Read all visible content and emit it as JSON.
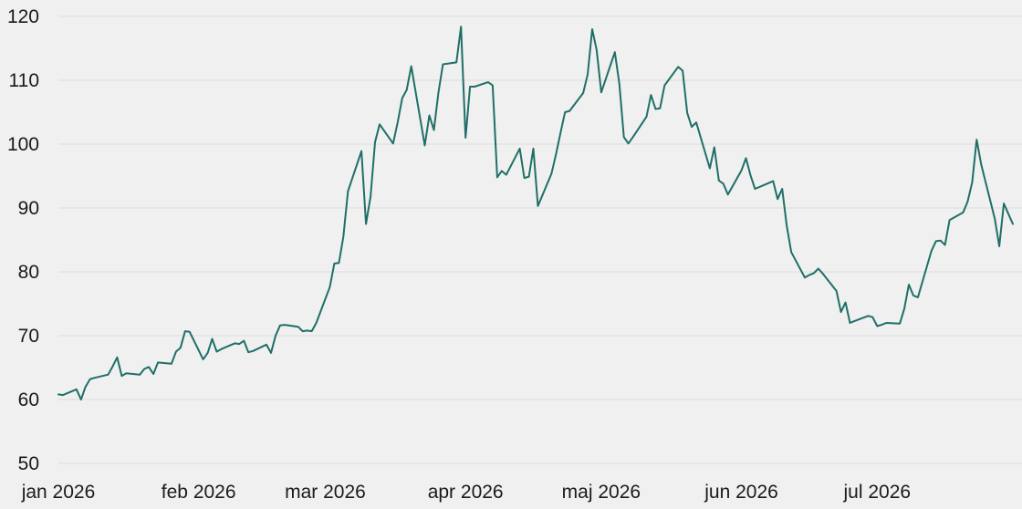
{
  "chart_data": {
    "type": "line",
    "title": "",
    "xlabel": "",
    "ylabel": "",
    "ylim": [
      50,
      120
    ],
    "yticks": [
      50,
      60,
      70,
      80,
      90,
      100,
      110,
      120
    ],
    "xlim": [
      "2026-01-01",
      "2026-07-31"
    ],
    "xticks": [
      {
        "date": "2026-01-01",
        "label": "jan 2026"
      },
      {
        "date": "2026-02-01",
        "label": "feb 2026"
      },
      {
        "date": "2026-03-01",
        "label": "mar 2026"
      },
      {
        "date": "2026-04-01",
        "label": "apr 2026"
      },
      {
        "date": "2026-05-01",
        "label": "maj 2026"
      },
      {
        "date": "2026-06-01",
        "label": "jun 2026"
      },
      {
        "date": "2026-07-01",
        "label": "jul 2026"
      }
    ],
    "grid": true,
    "legend": "none",
    "colors": {
      "line": "#1f6f68",
      "grid": "#dcdcdc",
      "background": "#f0f0f0"
    },
    "series": [
      {
        "x": [
          "2026-01-01",
          "2026-01-02",
          "2026-01-05",
          "2026-01-06",
          "2026-01-07",
          "2026-01-08",
          "2026-01-09",
          "2026-01-12",
          "2026-01-13",
          "2026-01-14",
          "2026-01-15",
          "2026-01-16",
          "2026-01-19",
          "2026-01-20",
          "2026-01-21",
          "2026-01-22",
          "2026-01-23",
          "2026-01-26",
          "2026-01-27",
          "2026-01-28",
          "2026-01-29",
          "2026-01-30",
          "2026-02-02",
          "2026-02-03",
          "2026-02-04",
          "2026-02-05",
          "2026-02-06",
          "2026-02-09",
          "2026-02-10",
          "2026-02-11",
          "2026-02-12",
          "2026-02-13",
          "2026-02-16",
          "2026-02-17",
          "2026-02-18",
          "2026-02-19",
          "2026-02-20",
          "2026-02-23",
          "2026-02-24",
          "2026-02-25",
          "2026-02-26",
          "2026-02-27",
          "2026-03-02",
          "2026-03-03",
          "2026-03-04",
          "2026-03-05",
          "2026-03-06",
          "2026-03-09",
          "2026-03-10",
          "2026-03-11",
          "2026-03-12",
          "2026-03-13",
          "2026-03-16",
          "2026-03-17",
          "2026-03-18",
          "2026-03-19",
          "2026-03-20",
          "2026-03-23",
          "2026-03-24",
          "2026-03-25",
          "2026-03-26",
          "2026-03-27",
          "2026-03-30",
          "2026-03-31",
          "2026-04-01",
          "2026-04-02",
          "2026-04-03",
          "2026-04-06",
          "2026-04-07",
          "2026-04-08",
          "2026-04-09",
          "2026-04-10",
          "2026-04-13",
          "2026-04-14",
          "2026-04-15",
          "2026-04-16",
          "2026-04-17",
          "2026-04-20",
          "2026-04-21",
          "2026-04-22",
          "2026-04-23",
          "2026-04-24",
          "2026-04-27",
          "2026-04-28",
          "2026-04-29",
          "2026-04-30",
          "2026-05-01",
          "2026-05-04",
          "2026-05-05",
          "2026-05-06",
          "2026-05-07",
          "2026-05-08",
          "2026-05-11",
          "2026-05-12",
          "2026-05-13",
          "2026-05-14",
          "2026-05-15",
          "2026-05-18",
          "2026-05-19",
          "2026-05-20",
          "2026-05-21",
          "2026-05-22",
          "2026-05-25",
          "2026-05-26",
          "2026-05-27",
          "2026-05-28",
          "2026-05-29",
          "2026-06-01",
          "2026-06-02",
          "2026-06-03",
          "2026-06-04",
          "2026-06-05",
          "2026-06-08",
          "2026-06-09",
          "2026-06-10",
          "2026-06-11",
          "2026-06-12",
          "2026-06-15",
          "2026-06-16",
          "2026-06-17",
          "2026-06-18",
          "2026-06-19",
          "2026-06-22",
          "2026-06-23",
          "2026-06-24",
          "2026-06-25",
          "2026-06-26",
          "2026-06-29",
          "2026-06-30",
          "2026-07-01",
          "2026-07-02",
          "2026-07-03",
          "2026-07-06",
          "2026-07-07",
          "2026-07-08",
          "2026-07-09",
          "2026-07-10",
          "2026-07-13",
          "2026-07-14",
          "2026-07-15",
          "2026-07-16",
          "2026-07-17",
          "2026-07-20",
          "2026-07-21",
          "2026-07-22",
          "2026-07-23",
          "2026-07-24",
          "2026-07-27",
          "2026-07-28",
          "2026-07-29",
          "2026-07-30",
          "2026-07-31"
        ],
        "values": [
          60.8,
          60.7,
          61.6,
          60.0,
          62.0,
          63.2,
          63.4,
          63.9,
          65.2,
          66.6,
          63.7,
          64.1,
          63.9,
          64.8,
          65.1,
          64.0,
          65.8,
          65.6,
          67.5,
          68.1,
          70.7,
          70.6,
          66.3,
          67.3,
          69.5,
          67.5,
          67.9,
          68.8,
          68.7,
          69.2,
          67.4,
          67.6,
          68.6,
          67.3,
          70.0,
          71.6,
          71.7,
          71.4,
          70.7,
          70.8,
          70.7,
          72.0,
          77.6,
          81.3,
          81.4,
          85.5,
          92.6,
          98.9,
          87.5,
          91.8,
          100.3,
          103.1,
          100.1,
          103.4,
          107.2,
          108.5,
          112.2,
          99.8,
          104.5,
          102.2,
          108.0,
          112.5,
          112.8,
          118.4,
          101.0,
          109.0,
          109.0,
          109.7,
          109.2,
          94.8,
          95.8,
          95.2,
          99.3,
          94.7,
          94.9,
          99.3,
          90.3,
          95.4,
          98.4,
          101.8,
          105.0,
          105.2,
          108.0,
          110.9,
          118.0,
          114.7,
          108.1,
          114.4,
          109.5,
          101.1,
          100.1,
          101.1,
          104.3,
          107.7,
          105.5,
          105.6,
          109.2,
          112.1,
          111.5,
          104.9,
          102.7,
          103.4,
          96.2,
          99.5,
          94.3,
          93.8,
          92.1,
          95.9,
          97.8,
          95.1,
          93.0,
          93.3,
          94.2,
          91.4,
          93.0,
          87.3,
          83.1,
          79.1,
          79.5,
          79.8,
          80.5,
          79.7,
          77.0,
          73.7,
          75.2,
          72.0,
          72.3,
          73.1,
          72.9,
          71.5,
          71.7,
          72.0,
          71.9,
          74.2,
          78.0,
          76.3,
          76.0,
          83.3,
          84.8,
          84.9,
          84.2,
          88.1,
          89.3,
          91.0,
          94.0,
          100.7,
          96.8,
          88.3,
          84.0,
          90.7,
          89.1,
          87.5
        ]
      }
    ]
  }
}
